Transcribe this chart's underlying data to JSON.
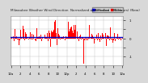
{
  "title": "Milwaukee Weather Wind Direction Normalized and Median (24 Hours) (New)",
  "title_fontsize": 3.0,
  "background_color": "#d8d8d8",
  "plot_bg_color": "#ffffff",
  "median_value": 0.05,
  "median_color": "#0000cc",
  "bar_color": "#ff0000",
  "ylim": [
    -1.5,
    1.2
  ],
  "yticks": [
    -1.0,
    -0.5,
    0.0,
    0.5,
    1.0
  ],
  "ytick_labels": [
    "-1",
    "",
    "0",
    "",
    "1"
  ],
  "n_bars": 288,
  "legend_blue_label": "Normalized",
  "legend_red_label": "Median",
  "grid_color": "#c0c0c0",
  "tick_fontsize": 2.8,
  "x_tick_labels": [
    "12a",
    "2",
    "4",
    "6",
    "8",
    "10",
    "12p",
    "2",
    "4",
    "6",
    "8",
    "10",
    "12a"
  ]
}
